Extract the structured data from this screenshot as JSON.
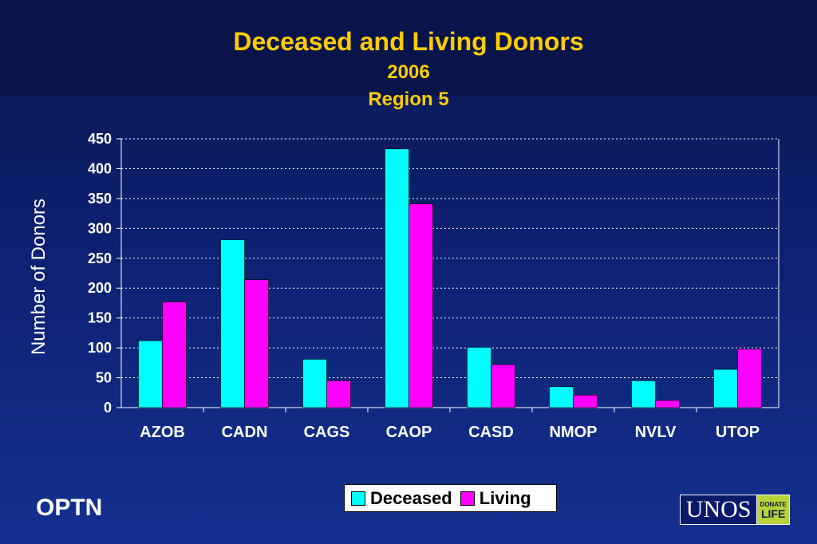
{
  "title": {
    "line1": "Deceased and Living Donors",
    "line2": "2006",
    "line3": "Region 5"
  },
  "footer": {
    "left": "OPTN",
    "logo_text": "UNOS",
    "logo_badge_line1": "DONATE",
    "logo_badge_line2": "LIFE"
  },
  "colors": {
    "deceased": "#00ffff",
    "living": "#ff00ff",
    "title": "#ffcc00"
  },
  "chart_data": {
    "type": "bar",
    "title": "Deceased and Living Donors 2006 Region 5",
    "xlabel": "",
    "ylabel": "Number of Donors",
    "ylim": [
      0,
      450
    ],
    "yticks": [
      0,
      50,
      100,
      150,
      200,
      250,
      300,
      350,
      400,
      450
    ],
    "categories": [
      "AZOB",
      "CADN",
      "CAGS",
      "CAOP",
      "CASD",
      "NMOP",
      "NVLV",
      "UTOP"
    ],
    "series": [
      {
        "name": "Deceased",
        "values": [
          112,
          281,
          81,
          433,
          101,
          35,
          45,
          64
        ]
      },
      {
        "name": "Living",
        "values": [
          177,
          214,
          45,
          341,
          72,
          21,
          12,
          98
        ]
      }
    ],
    "grid": true,
    "legend": "bottom"
  }
}
